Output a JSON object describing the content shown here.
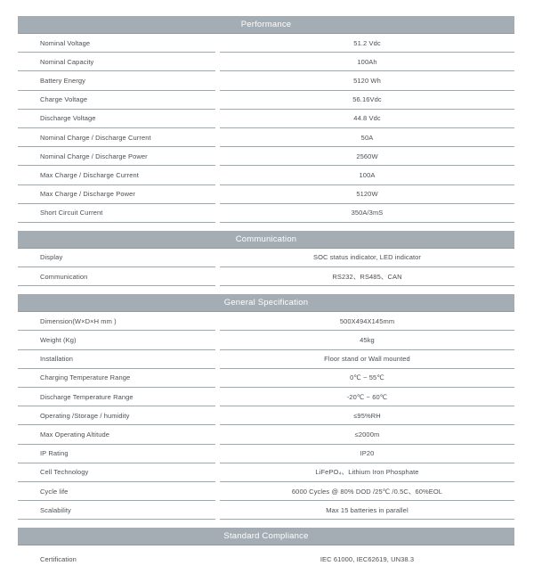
{
  "document": {
    "type": "battery-specification-sheet",
    "colors": {
      "section_bar": "#a3adb3",
      "section_bar_edge": "#8e99a0",
      "divider": "#9daab1",
      "text": "#4a4f54",
      "header_text": "#ffffff",
      "background": "#ffffff"
    },
    "sections": [
      {
        "title": "Performance",
        "rows": [
          {
            "label": "Nominal Voltage",
            "value": "51.2 Vdc"
          },
          {
            "label": "Nominal Capacity",
            "value": "100Ah"
          },
          {
            "label": "Battery Energy",
            "value": "5120 Wh"
          },
          {
            "label": "Charge Voltage",
            "value": "56.16Vdc"
          },
          {
            "label": "Discharge Voltage",
            "value": "44.8 Vdc"
          },
          {
            "label": "Nominal Charge / Discharge Current",
            "value": "50A"
          },
          {
            "label": "Nominal Charge / Discharge Power",
            "value": "2560W"
          },
          {
            "label": "Max Charge / Discharge Current",
            "value": "100A"
          },
          {
            "label": "Max Charge / Discharge Power",
            "value": "5120W"
          },
          {
            "label": "Short Circuit Current",
            "value": "350A/3mS"
          }
        ]
      },
      {
        "title": "Communication",
        "rows": [
          {
            "label": "Display",
            "value": "SOC status indicator, LED indicator"
          },
          {
            "label": "Communication",
            "value": "RS232、RS485、CAN"
          }
        ]
      },
      {
        "title": "General Specification",
        "rows": [
          {
            "label": "Dimension(W×D×H mm )",
            "value": "500X494X145mm"
          },
          {
            "label": "Weight (Kg)",
            "value": "45kg"
          },
          {
            "label": "Installation",
            "value": "Floor stand or Wall mounted"
          },
          {
            "label": "Charging Temperature Range",
            "value": "0℃ ~ 55℃"
          },
          {
            "label": "Discharge Temperature Range",
            "value": "-20℃ ~ 60℃"
          },
          {
            "label": "Operating /Storage / humidity",
            "value": "≤95%RH"
          },
          {
            "label": "Max Operating Altitude",
            "value": "≤2000m"
          },
          {
            "label": "IP Rating",
            "value": "IP20"
          },
          {
            "label": "Cell Technology",
            "value": "LiFePO₄、Lithium Iron Phosphate"
          },
          {
            "label": "Cycle life",
            "value": "6000 Cycles @  80% DOD /25℃ /0.5C、60%EOL"
          },
          {
            "label": "Scalability",
            "value": "Max 15 batteries in parallel"
          }
        ]
      },
      {
        "title": "Standard Compliance",
        "rows": [
          {
            "label": "Certification",
            "value": "IEC 61000, IEC62619, UN38.3"
          }
        ]
      }
    ]
  }
}
